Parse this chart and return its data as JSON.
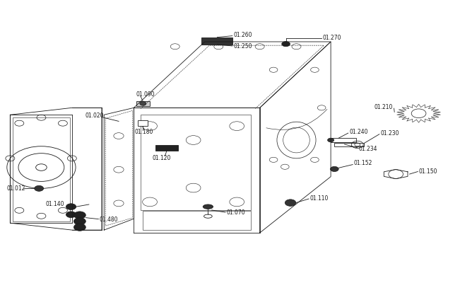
{
  "bg_color": "#ffffff",
  "line_color": "#1a1a1a",
  "text_color": "#1a1a1a",
  "fig_width": 6.51,
  "fig_height": 4.0
}
